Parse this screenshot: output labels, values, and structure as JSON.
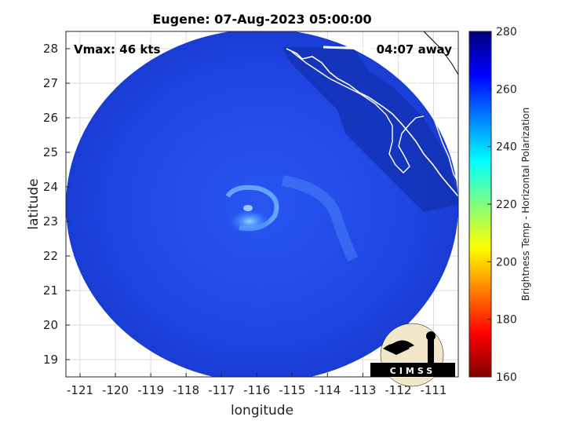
{
  "chart_data": {
    "type": "heatmap",
    "title": "Eugene: 07-Aug-2023 05:00:00",
    "xlabel": "longitude",
    "ylabel": "latitude",
    "xlim": [
      -121.4,
      -110.3
    ],
    "ylim": [
      18.5,
      28.5
    ],
    "x_ticks": [
      -121,
      -120,
      -119,
      -118,
      -117,
      -116,
      -115,
      -114,
      -113,
      -112,
      -111
    ],
    "y_ticks": [
      19,
      20,
      21,
      22,
      23,
      24,
      25,
      26,
      27,
      28
    ],
    "grid": true,
    "annotations": {
      "vmax": "Vmax: 46 kts",
      "away": "04:07 away"
    },
    "colorbar": {
      "label": "Brightness Temp - Horizontal Polarization",
      "min": 160,
      "max": 280,
      "ticks": [
        160,
        180,
        200,
        220,
        240,
        260,
        280
      ],
      "colormap": [
        "#7f0000",
        "#ff0000",
        "#ff8000",
        "#ffff00",
        "#80ff80",
        "#00ffff",
        "#0080ff",
        "#0000ff",
        "#00007f"
      ]
    },
    "storm_center": {
      "lon": -116.2,
      "lat": 23.1
    },
    "logo": "CIMSS"
  },
  "colors": {
    "field_base": "#1f47e6",
    "field_dark": "#1130b0",
    "field_light": "#5aa0ff"
  }
}
